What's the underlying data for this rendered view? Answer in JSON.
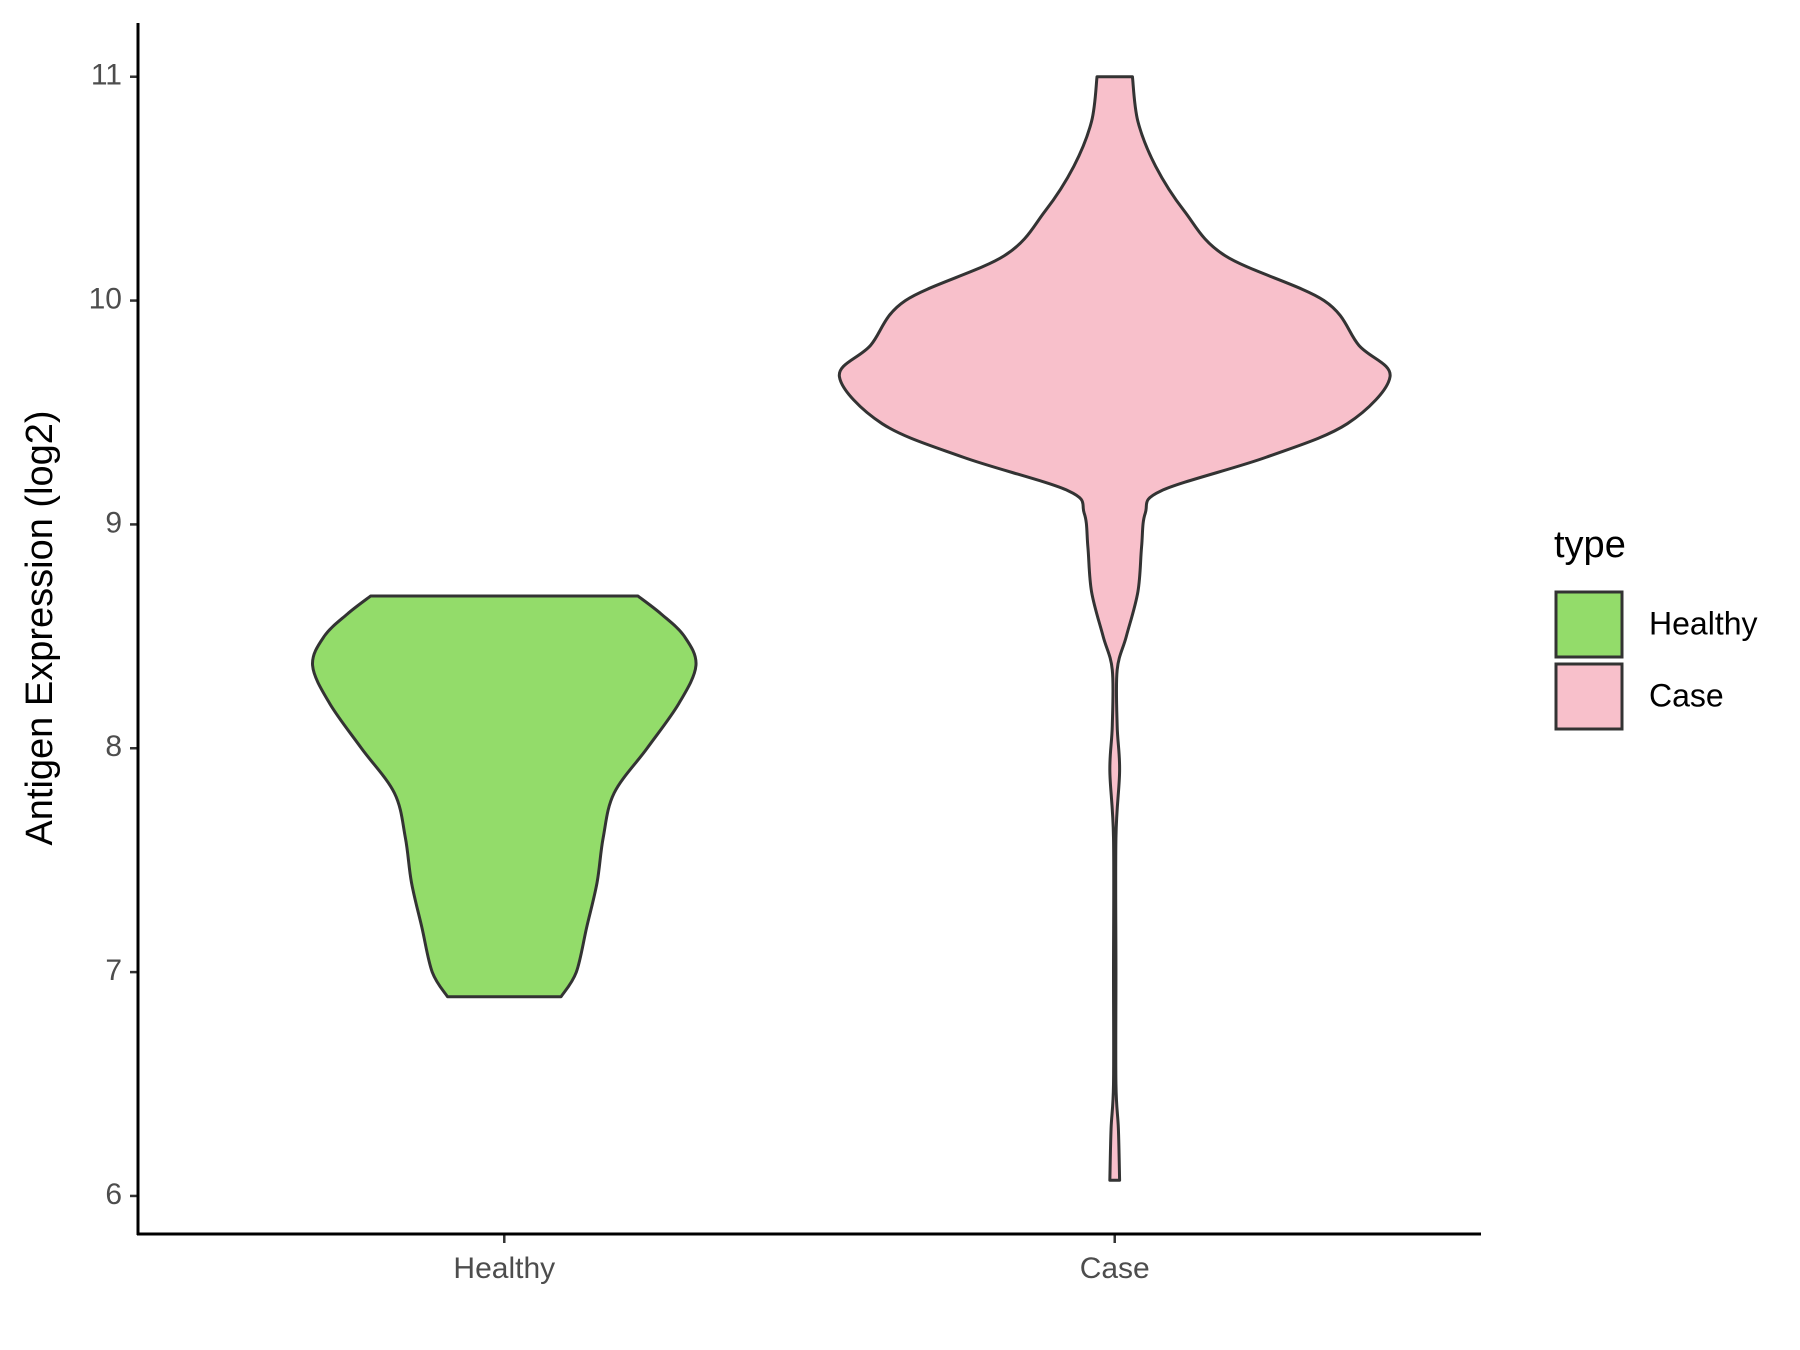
{
  "chart_data": {
    "type": "violin",
    "y_label": "Antigen Expression (log2)",
    "categories": [
      "Healthy",
      "Case"
    ],
    "ylim": [
      5.83,
      11.24
    ],
    "yticks": [
      6,
      7,
      8,
      9,
      10,
      11
    ],
    "legend_title": "type",
    "legend": "right",
    "outline_color": "#333333",
    "series": [
      {
        "name": "Healthy",
        "color": "#93dc6a",
        "y": [
          6.89,
          7.0,
          7.2,
          7.4,
          7.6,
          7.8,
          8.0,
          8.2,
          8.37,
          8.5,
          8.6,
          8.68
        ],
        "density": [
          0.093,
          0.118,
          0.135,
          0.152,
          0.162,
          0.18,
          0.234,
          0.286,
          0.314,
          0.295,
          0.257,
          0.219
        ]
      },
      {
        "name": "Case",
        "color": "#f8c0cb",
        "y": [
          6.07,
          6.3,
          6.5,
          7.0,
          7.6,
          7.9,
          8.1,
          8.35,
          8.5,
          8.7,
          8.9,
          9.05,
          9.15,
          9.3,
          9.45,
          9.66,
          9.8,
          10.0,
          10.2,
          10.4,
          10.6,
          10.8,
          11.0
        ],
        "density": [
          0.008,
          0.006,
          0.002,
          0.002,
          0.002,
          0.008,
          0.004,
          0.004,
          0.019,
          0.038,
          0.044,
          0.05,
          0.076,
          0.248,
          0.381,
          0.451,
          0.4,
          0.343,
          0.181,
          0.114,
          0.067,
          0.038,
          0.029
        ]
      }
    ]
  }
}
